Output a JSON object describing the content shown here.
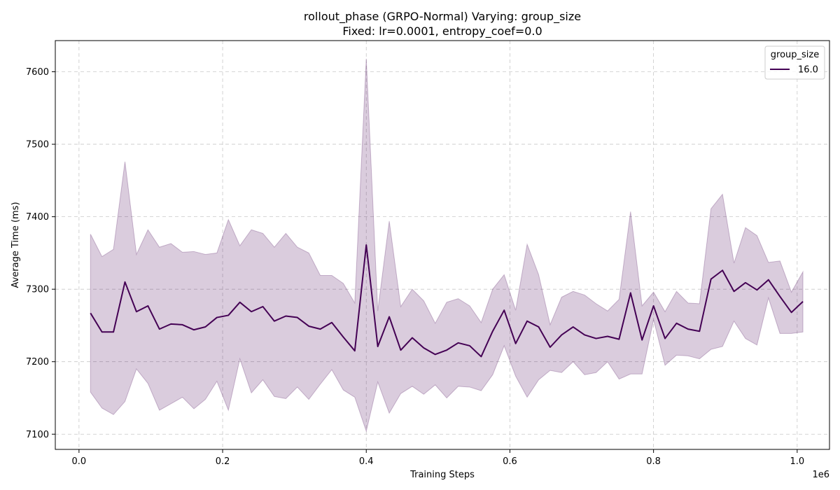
{
  "chart_data": {
    "type": "line",
    "title": "rollout_phase (GRPO-Normal) Varying: group_size",
    "subtitle": "Fixed: lr=0.0001, entropy_coef=0.0",
    "xlabel": "Training Steps",
    "ylabel": "Average Time (ms)",
    "x_scale_label": "1e6",
    "xlim": [
      -0.033,
      1.045
    ],
    "ylim": [
      7079,
      7643
    ],
    "x_ticks": [
      0.0,
      0.2,
      0.4,
      0.6,
      0.8,
      1.0
    ],
    "x_tick_labels": [
      "0.0",
      "0.2",
      "0.4",
      "0.6",
      "0.8",
      "1.0"
    ],
    "y_ticks": [
      7100,
      7200,
      7300,
      7400,
      7500,
      7600
    ],
    "y_tick_labels": [
      "7100",
      "7200",
      "7300",
      "7400",
      "7500",
      "7600"
    ],
    "grid": true,
    "legend": {
      "title": "group_size",
      "placement": "top-right"
    },
    "colors": {
      "line": "#440154",
      "band": "#440154"
    },
    "series": [
      {
        "name": "16.0",
        "x": [
          0.016,
          0.032,
          0.048,
          0.064,
          0.08,
          0.096,
          0.112,
          0.128,
          0.144,
          0.16,
          0.176,
          0.192,
          0.208,
          0.224,
          0.24,
          0.256,
          0.272,
          0.288,
          0.304,
          0.32,
          0.336,
          0.352,
          0.368,
          0.384,
          0.4,
          0.416,
          0.432,
          0.448,
          0.464,
          0.48,
          0.496,
          0.512,
          0.528,
          0.544,
          0.56,
          0.576,
          0.592,
          0.608,
          0.624,
          0.64,
          0.656,
          0.672,
          0.688,
          0.704,
          0.72,
          0.736,
          0.752,
          0.768,
          0.784,
          0.8,
          0.816,
          0.832,
          0.848,
          0.864,
          0.88,
          0.896,
          0.912,
          0.928,
          0.944,
          0.96,
          0.976,
          0.992,
          1.008
        ],
        "values": [
          7267,
          7241,
          7241,
          7310,
          7269,
          7277,
          7245,
          7252,
          7251,
          7244,
          7248,
          7261,
          7264,
          7282,
          7269,
          7276,
          7256,
          7263,
          7261,
          7249,
          7245,
          7254,
          7234,
          7215,
          7361,
          7221,
          7262,
          7216,
          7233,
          7219,
          7210,
          7216,
          7226,
          7222,
          7207,
          7242,
          7271,
          7225,
          7256,
          7248,
          7220,
          7237,
          7248,
          7237,
          7232,
          7235,
          7231,
          7295,
          7230,
          7277,
          7232,
          7253,
          7245,
          7242,
          7314,
          7326,
          7297,
          7309,
          7299,
          7313,
          7290,
          7268,
          7283
        ],
        "upper": [
          7376,
          7345,
          7355,
          7476,
          7348,
          7382,
          7358,
          7363,
          7351,
          7352,
          7348,
          7350,
          7396,
          7360,
          7382,
          7377,
          7358,
          7377,
          7358,
          7350,
          7319,
          7319,
          7308,
          7281,
          7618,
          7270,
          7394,
          7276,
          7300,
          7284,
          7253,
          7282,
          7287,
          7277,
          7254,
          7300,
          7320,
          7271,
          7362,
          7320,
          7251,
          7289,
          7297,
          7292,
          7280,
          7270,
          7286,
          7407,
          7277,
          7296,
          7269,
          7297,
          7281,
          7280,
          7411,
          7431,
          7336,
          7385,
          7374,
          7337,
          7339,
          7296,
          7324
        ],
        "lower": [
          7158,
          7136,
          7127,
          7145,
          7190,
          7170,
          7133,
          7142,
          7151,
          7135,
          7148,
          7173,
          7133,
          7204,
          7157,
          7175,
          7152,
          7149,
          7165,
          7148,
          7169,
          7189,
          7161,
          7151,
          7104,
          7172,
          7129,
          7156,
          7166,
          7155,
          7168,
          7150,
          7166,
          7165,
          7160,
          7182,
          7222,
          7180,
          7151,
          7175,
          7188,
          7185,
          7200,
          7182,
          7185,
          7200,
          7176,
          7183,
          7183,
          7258,
          7195,
          7209,
          7208,
          7204,
          7217,
          7221,
          7256,
          7232,
          7223,
          7288,
          7239,
          7239,
          7241
        ]
      }
    ]
  }
}
